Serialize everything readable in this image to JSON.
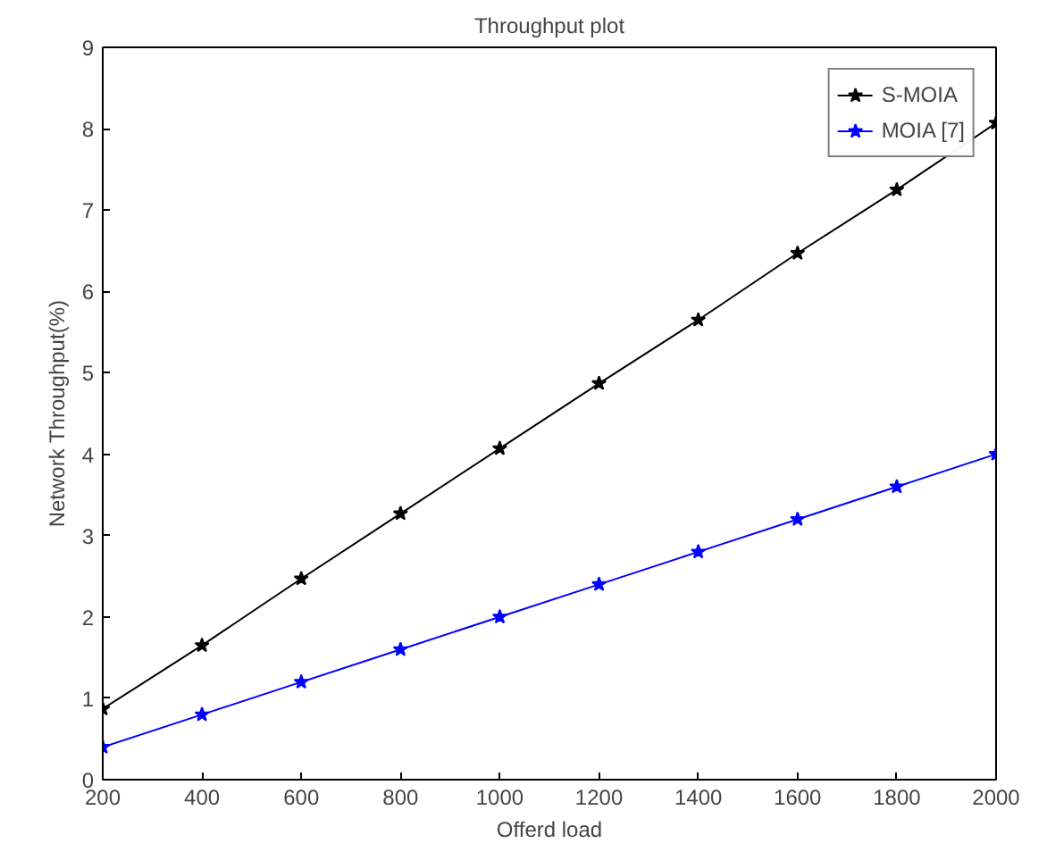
{
  "chart_data": {
    "type": "line",
    "title": "Throughput plot",
    "xlabel": "Offerd load",
    "ylabel": "Network Throughput(%)",
    "x": [
      200,
      400,
      600,
      800,
      1000,
      1200,
      1400,
      1600,
      1800,
      2000
    ],
    "series": [
      {
        "name": "S-MOIA",
        "color": "#000000",
        "values": [
          0.87,
          1.65,
          2.47,
          3.27,
          4.07,
          4.87,
          5.65,
          6.47,
          7.25,
          8.07
        ]
      },
      {
        "name": "MOIA [7]",
        "color": "#0000ff",
        "values": [
          0.4,
          0.8,
          1.2,
          1.6,
          2.0,
          2.4,
          2.8,
          3.2,
          3.6,
          4.0
        ]
      }
    ],
    "xlim": [
      200,
      2000
    ],
    "ylim": [
      0,
      9
    ],
    "xticks": [
      200,
      400,
      600,
      800,
      1000,
      1200,
      1400,
      1600,
      1800,
      2000
    ],
    "yticks": [
      0,
      1,
      2,
      3,
      4,
      5,
      6,
      7,
      8,
      9
    ],
    "grid": false,
    "legend": "top right",
    "marker": "star",
    "line_style": "solid"
  }
}
